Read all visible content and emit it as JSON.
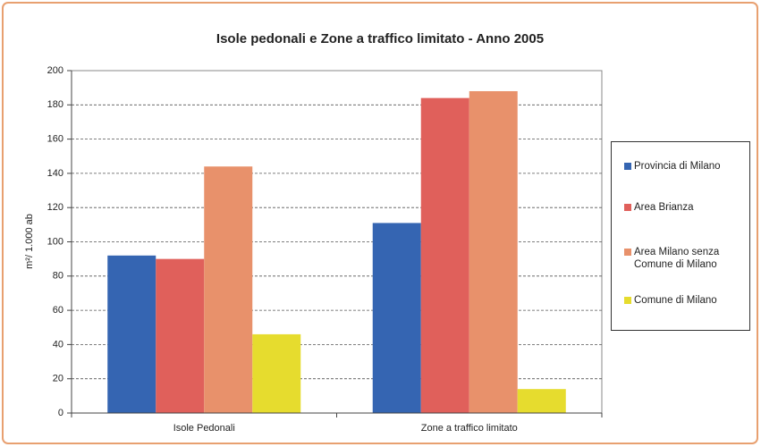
{
  "chart_data": {
    "type": "bar",
    "title": "Isole pedonali e Zone a traffico limitato - Anno 2005",
    "y_label": "m²/ 1.000 ab",
    "categories": [
      "Isole Pedonali",
      "Zone a traffico limitato"
    ],
    "series": [
      {
        "name": "Provincia di Milano",
        "color": "#3565b2",
        "values": [
          92,
          111
        ]
      },
      {
        "name": "Area Brianza",
        "color": "#e0605b",
        "values": [
          90,
          184
        ]
      },
      {
        "name": "Area Milano senza Comune di Milano",
        "color": "#e8916b",
        "values": [
          144,
          188
        ]
      },
      {
        "name": "Comune di Milano",
        "color": "#e6dc2e",
        "values": [
          46,
          14
        ]
      }
    ],
    "ylim": [
      0,
      200
    ],
    "yticks": [
      0,
      20,
      40,
      60,
      80,
      100,
      120,
      140,
      160,
      180,
      200
    ],
    "grid": true,
    "legend": "right"
  }
}
